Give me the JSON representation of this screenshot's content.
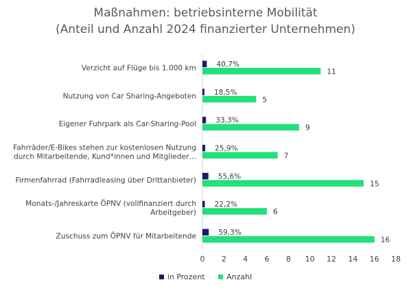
{
  "chart_data": {
    "type": "bar",
    "orientation": "horizontal",
    "title": "Maßnahmen: betriebsinterne Mobilität",
    "subtitle": "(Anteil und Anzahl 2024 finanzierter Unternehmen)",
    "categories": [
      [
        "Verzicht auf Flüge bis 1.000 km"
      ],
      [
        "Nutzung von Car Sharing-Angeboten"
      ],
      [
        "Eigener Fuhrpark als Car-Sharing-Pool"
      ],
      [
        "Fahrräder/E-Bikes stehen zur kostenlosen Nutzung",
        "durch Mitarbeitende, Kund*innen und Mitglieder…"
      ],
      [
        "Firmenfahrrad (Fahrradleasing über Drittanbieter)"
      ],
      [
        "Monats-/Jahreskarte ÖPNV (vollfinanziert durch",
        "Arbeitgeber)"
      ],
      [
        "Zuschuss zum ÖPNV für Mitarbeitende"
      ]
    ],
    "series": [
      {
        "name": "in Prozent",
        "color": "#1a1a6e",
        "values": [
          0.407,
          0.185,
          0.333,
          0.259,
          0.556,
          0.222,
          0.593
        ],
        "labels": [
          "40,7%",
          "18,5%",
          "33,3%",
          "25,9%",
          "55,6%",
          "22,2%",
          "59,3%"
        ]
      },
      {
        "name": "Anzahl",
        "color": "#22e07a",
        "values": [
          11,
          5,
          9,
          7,
          15,
          6,
          16
        ],
        "labels": [
          "11",
          "5",
          "9",
          "7",
          "15",
          "6",
          "16"
        ]
      }
    ],
    "xlim": [
      0,
      18
    ],
    "xticks": [
      "0",
      "2",
      "4",
      "6",
      "8",
      "10",
      "12",
      "14",
      "16",
      "18"
    ],
    "grid": false,
    "legend_position": "bottom"
  }
}
